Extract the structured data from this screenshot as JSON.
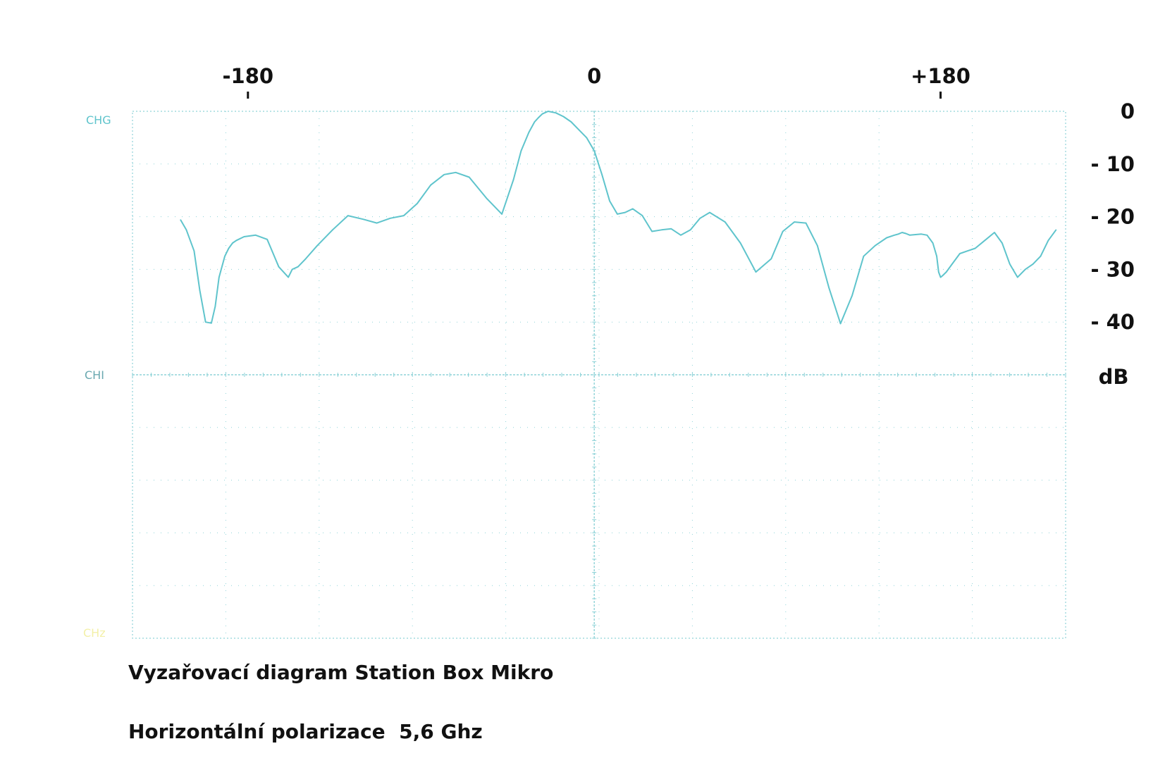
{
  "chart_data": {
    "type": "line",
    "title": "Vyzařovací diagram Station Box Mikro",
    "subtitle": "Horizontální polarizace  5,6 Ghz",
    "top_axis_labels": [
      "-180",
      "0",
      "+180"
    ],
    "y_tick_labels": [
      "0",
      "- 10",
      "- 20",
      "- 30",
      "- 40"
    ],
    "y_unit": "dB",
    "channel_labels": [
      "CHG",
      "CHI",
      "CHz"
    ],
    "colors": {
      "trace": "#5fc4cc",
      "grid": "#8fd3d8",
      "text": "#111111",
      "channel_yellow": "#f3f0a8"
    },
    "xlim": [
      -240,
      245
    ],
    "ylim": [
      -50,
      0
    ],
    "series": [
      {
        "x": [
          -215,
          -212,
          -208,
          -205,
          -202,
          -199,
          -197,
          -195,
          -192,
          -190,
          -188,
          -186,
          -182,
          -176,
          -170,
          -164,
          -159,
          -157,
          -154,
          -150,
          -144,
          -136,
          -128,
          -120,
          -113,
          -106,
          -99,
          -92,
          -85,
          -78,
          -72,
          -65,
          -56,
          -48,
          -42,
          -38,
          -34,
          -31,
          -29,
          -27,
          -24,
          -20,
          -16,
          -12,
          -8,
          -4,
          0,
          4,
          8,
          12,
          16,
          20,
          25,
          30,
          35,
          40,
          45,
          50,
          55,
          60,
          68,
          76,
          84,
          92,
          98,
          104,
          110,
          116,
          122,
          128,
          134,
          140,
          146,
          152,
          156,
          158,
          160,
          162,
          164,
          167,
          170,
          173,
          176,
          178,
          179,
          180,
          181,
          183,
          186,
          190,
          194,
          198,
          203,
          208,
          212,
          216,
          220,
          224,
          228,
          232,
          236,
          240
        ],
        "values": [
          -20.6,
          -22.5,
          -26.5,
          -34,
          -40,
          -40.2,
          -37,
          -31.5,
          -27.5,
          -26,
          -25,
          -24.5,
          -23.8,
          -23.5,
          -24.3,
          -29.5,
          -31.5,
          -30,
          -29.5,
          -28,
          -25.5,
          -22.5,
          -19.8,
          -20.5,
          -21.2,
          -20.3,
          -19.8,
          -17.5,
          -14,
          -12,
          -11.6,
          -12.5,
          -16.5,
          -19.5,
          -13,
          -7.5,
          -4,
          -2,
          -1.2,
          -0.5,
          0,
          -0.3,
          -1,
          -2,
          -3.5,
          -5,
          -7.5,
          -12,
          -17,
          -19.5,
          -19.2,
          -18.5,
          -19.8,
          -22.8,
          -22.5,
          -22.3,
          -23.5,
          -22.5,
          -20.3,
          -19.2,
          -21,
          -25,
          -30.5,
          -28,
          -22.8,
          -21,
          -21.2,
          -25.5,
          -33.5,
          -40.3,
          -35,
          -27.5,
          -25.5,
          -24,
          -23.5,
          -23.3,
          -23,
          -23.2,
          -23.5,
          -23.4,
          -23.3,
          -23.5,
          -25,
          -27.5,
          -30.5,
          -31.5,
          -31.2,
          -30.5,
          -29,
          -27,
          -26.5,
          -26,
          -24.5,
          -23,
          -25,
          -29,
          -31.5,
          -30,
          -29,
          -27.5,
          -24.5,
          -22.5
        ]
      }
    ],
    "grid": true
  }
}
